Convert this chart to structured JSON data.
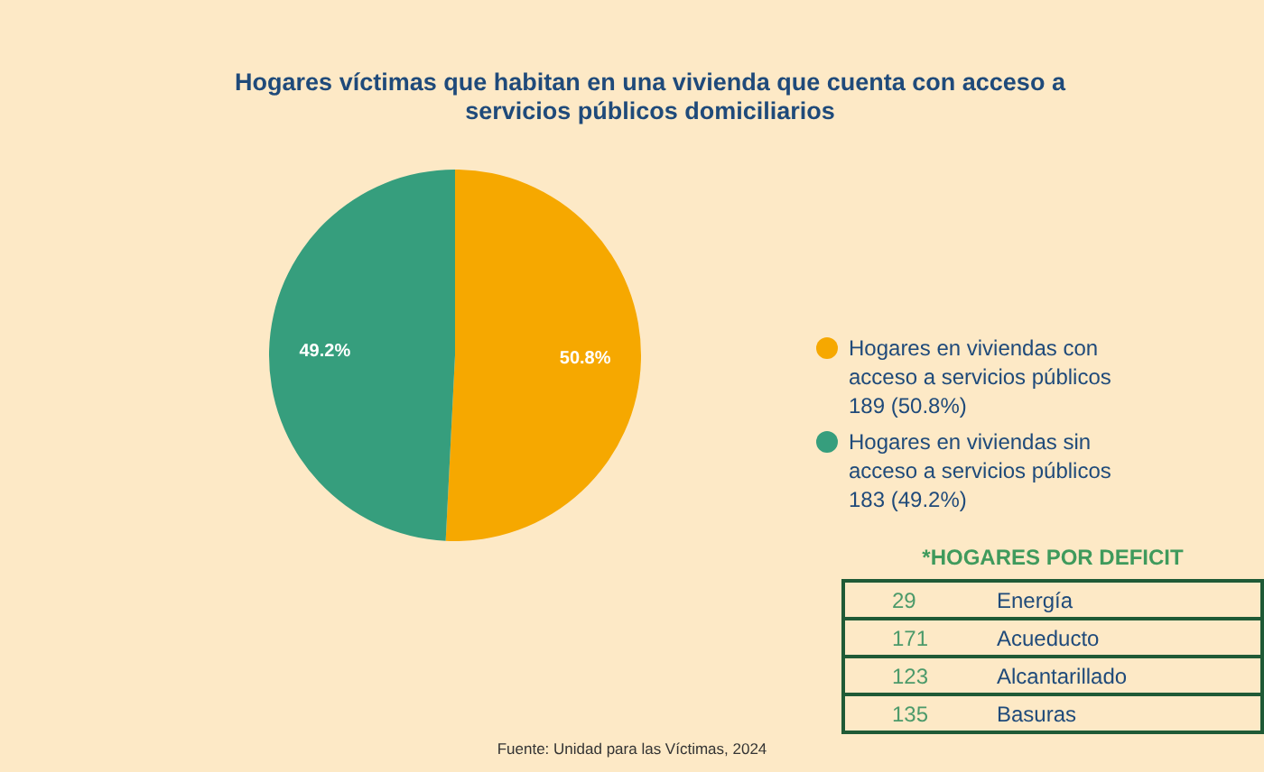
{
  "chart_data": [
    {
      "type": "pie",
      "title": "Hogares víctimas que habitan en una vivienda que cuenta con acceso a servicios públicos domiciliarios",
      "categories": [
        "Hogares en viviendas con\nacceso a servicios públicos\n189 (50.8%)",
        "Hogares en viviendas sin\nacceso a servicios públicos\n183 (49.2%)"
      ],
      "values": [
        50.8,
        49.2
      ],
      "value_labels": [
        "50.8%",
        "49.2%"
      ],
      "colors": [
        "#f6a800",
        "#369e7d"
      ],
      "legend": "right",
      "annotations": [
        "Fuente: Unidad para las Víctimas, 2024"
      ]
    },
    {
      "type": "other",
      "title": "*HOGARES POR DEFICIT",
      "categories": [
        "Energía",
        "Acueducto",
        "Alcantarillado",
        "Basuras"
      ],
      "values": [
        29,
        171,
        123,
        135
      ],
      "data_labels": true
    }
  ]
}
